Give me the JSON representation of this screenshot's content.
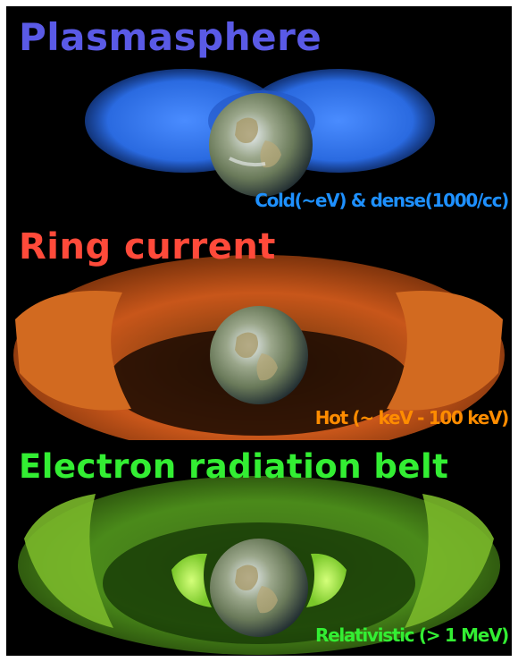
{
  "colors": {
    "background": "#000000",
    "plasmasphere": "#5a5ae6",
    "plasmasphere_caption": "#1e90ff",
    "ring_current": "#ff4a3a",
    "ring_current_caption": "#ff8c00",
    "radiation_belt": "#33ee33",
    "radiation_belt_caption": "#33ee33"
  },
  "panels": [
    {
      "title": "Plasmasphere",
      "caption": "Cold(~eV) & dense(1000/cc)"
    },
    {
      "title": "Ring current",
      "caption": "Hot (~ keV - 100 keV)"
    },
    {
      "title": "Electron radiation belt",
      "caption": "Relativistic (> 1 MeV)"
    }
  ]
}
